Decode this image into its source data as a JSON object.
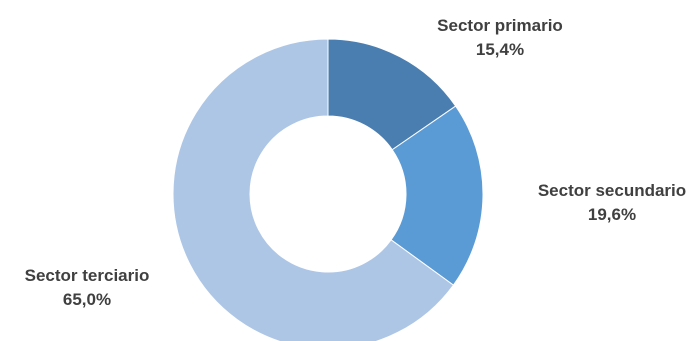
{
  "chart_data": {
    "type": "pie",
    "variant": "donut",
    "title": "",
    "slices": [
      {
        "name": "Sector primario",
        "value": 15.4,
        "value_label": "15,4%",
        "color": "#4a7eb0"
      },
      {
        "name": "Sector secundario",
        "value": 19.6,
        "value_label": "19,6%",
        "color": "#5b9bd5"
      },
      {
        "name": "Sector terciario",
        "value": 65.0,
        "value_label": "65,0%",
        "color": "#adc6e6"
      }
    ],
    "start_angle_deg": 0,
    "direction": "clockwise",
    "legend": "none",
    "data_labels": "outside"
  }
}
